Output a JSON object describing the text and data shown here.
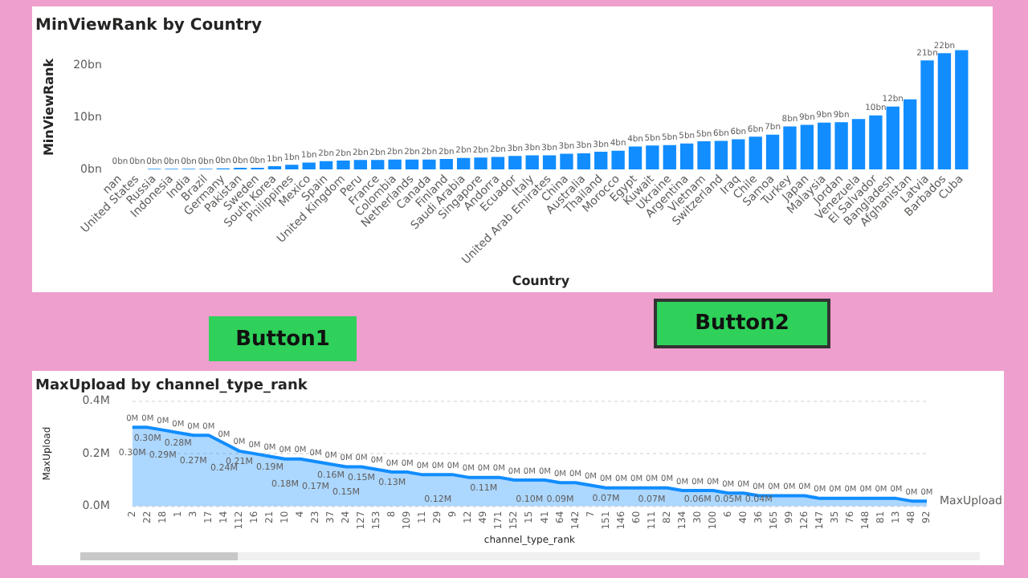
{
  "chart_data": [
    {
      "type": "bar",
      "title": "MinViewRank by Country",
      "xlabel": "Country",
      "ylabel": "MinViewRank",
      "categories": [
        "nan",
        "United States",
        "Russia",
        "Indonesia",
        "India",
        "Brazil",
        "Germany",
        "Pakistan",
        "Sweden",
        "South Korea",
        "Philippines",
        "Mexico",
        "Spain",
        "United Kingdom",
        "Peru",
        "France",
        "Colombia",
        "Netherlands",
        "Canada",
        "Finland",
        "Saudi Arabia",
        "Singapore",
        "Andorra",
        "Ecuador",
        "Italy",
        "United Arab Emirates",
        "China",
        "Australia",
        "Thailand",
        "Morocco",
        "Egypt",
        "Kuwait",
        "Ukraine",
        "Argentina",
        "Vietnam",
        "Switzerland",
        "Iraq",
        "Chile",
        "Samoa",
        "Turkey",
        "Japan",
        "Malaysia",
        "Jordan",
        "Venezuela",
        "El Salvador",
        "Bangladesh",
        "Afghanistan",
        "Latvia",
        "Barbados",
        "Cuba"
      ],
      "series": [
        {
          "color": "#118dff",
          "values": [
            0,
            0,
            0.1,
            0.1,
            0.1,
            0.1,
            0.2,
            0.3,
            0.3,
            0.6,
            0.9,
            1.3,
            1.6,
            1.7,
            1.8,
            1.8,
            1.9,
            1.9,
            1.9,
            2.0,
            2.2,
            2.3,
            2.4,
            2.6,
            2.7,
            2.7,
            3.0,
            3.1,
            3.4,
            3.6,
            4.4,
            4.6,
            4.7,
            5.0,
            5.4,
            5.5,
            5.8,
            6.3,
            6.7,
            8.3,
            8.6,
            9.0,
            9.1,
            9.7,
            10.4,
            12.1,
            13.5,
            21.0,
            22.4,
            23.0
          ],
          "value_labels": [
            "0bn",
            "0bn",
            "0bn",
            "0bn",
            "0bn",
            "0bn",
            "0bn",
            "0bn",
            "0bn",
            "1bn",
            "1bn",
            "1bn",
            "2bn",
            "2bn",
            "2bn",
            "2bn",
            "2bn",
            "2bn",
            "2bn",
            "2bn",
            "2bn",
            "2bn",
            "2bn",
            "3bn",
            "3bn",
            "3bn",
            "3bn",
            "3bn",
            "3bn",
            "4bn",
            "4bn",
            "5bn",
            "5bn",
            "5bn",
            "5bn",
            "6bn",
            "6bn",
            "6bn",
            "7bn",
            "8bn",
            "9bn",
            "9bn",
            "9bn",
            null,
            "10bn",
            "12bn",
            null,
            "21bn",
            "22bn",
            null
          ]
        }
      ],
      "ylim": [
        0,
        24
      ],
      "yticks": [
        {
          "value": 0,
          "label": "0bn"
        },
        {
          "value": 10,
          "label": "10bn"
        },
        {
          "value": 20,
          "label": "20bn"
        }
      ]
    },
    {
      "type": "other",
      "annotations": [
        "Button1",
        "Button2"
      ]
    },
    {
      "type": "area",
      "title": "MaxUpload by channel_type_rank",
      "xlabel": "channel_type_rank",
      "ylabel": "MaxUpload",
      "grid": "y",
      "categories": [
        "2",
        "22",
        "18",
        "1",
        "3",
        "17",
        "14",
        "112",
        "16",
        "21",
        "10",
        "4",
        "23",
        "37",
        "24",
        "127",
        "153",
        "8",
        "109",
        "11",
        "29",
        "9",
        "12",
        "49",
        "171",
        "152",
        "15",
        "41",
        "64",
        "142",
        "7",
        "151",
        "146",
        "60",
        "111",
        "82",
        "134",
        "30",
        "100",
        "6",
        "40",
        "36",
        "165",
        "99",
        "126",
        "147",
        "35",
        "76",
        "148",
        "81",
        "13",
        "48",
        "92"
      ],
      "series": [
        {
          "name": "MaxUpload",
          "color": "#118dff",
          "values": [
            0.3,
            0.3,
            0.29,
            0.28,
            0.27,
            0.27,
            0.24,
            0.21,
            0.2,
            0.19,
            0.18,
            0.18,
            0.17,
            0.16,
            0.15,
            0.15,
            0.14,
            0.13,
            0.13,
            0.12,
            0.12,
            0.12,
            0.11,
            0.11,
            0.11,
            0.1,
            0.1,
            0.1,
            0.09,
            0.09,
            0.08,
            0.07,
            0.07,
            0.07,
            0.07,
            0.07,
            0.06,
            0.06,
            0.06,
            0.05,
            0.05,
            0.04,
            0.04,
            0.04,
            0.04,
            0.03,
            0.03,
            0.03,
            0.03,
            0.03,
            0.03,
            0.02,
            0.02
          ],
          "value_labels": [
            "0.30M",
            "0.30M",
            "0.29M",
            "0.28M",
            "0.27M",
            null,
            "0.24M",
            "0.21M",
            null,
            "0.19M",
            "0.18M",
            null,
            "0.17M",
            "0.16M",
            "0.15M",
            "0.15M",
            null,
            "0.13M",
            null,
            null,
            "0.12M",
            null,
            null,
            "0.11M",
            null,
            null,
            "0.10M",
            null,
            "0.09M",
            null,
            null,
            "0.07M",
            null,
            null,
            "0.07M",
            null,
            null,
            "0.06M",
            null,
            "0.05M",
            null,
            "0.04M",
            null,
            null,
            null,
            null,
            null,
            null,
            null,
            null,
            null,
            null,
            null
          ]
        }
      ],
      "ylim": [
        0,
        0.4
      ],
      "yticks": [
        {
          "value": 0,
          "label": "0.0M"
        },
        {
          "value": 0.2,
          "label": "0.2M"
        },
        {
          "value": 0.4,
          "label": "0.4M"
        }
      ],
      "annotations": [
        {
          "text": "0M",
          "x": "2",
          "y": 0.3
        },
        {
          "text": "0M",
          "x": "22",
          "y": 0.3
        },
        {
          "text": "0M",
          "x": "18",
          "y": 0.29
        },
        {
          "text": "0M",
          "x": "1",
          "y": 0.28
        },
        {
          "text": "0M",
          "x": "3",
          "y": 0.27
        },
        {
          "text": "0M",
          "x": "17",
          "y": 0.27
        },
        {
          "text": "0M",
          "x": "14",
          "y": 0.24
        },
        {
          "text": "0M",
          "x": "112",
          "y": 0.21
        },
        {
          "text": "0M",
          "x": "16",
          "y": 0.2
        },
        {
          "text": "0M",
          "x": "21",
          "y": 0.19
        },
        {
          "text": "0M",
          "x": "10",
          "y": 0.18
        },
        {
          "text": "0M",
          "x": "4",
          "y": 0.18
        },
        {
          "text": "0M",
          "x": "23",
          "y": 0.17
        },
        {
          "text": "0M",
          "x": "37",
          "y": 0.16
        },
        {
          "text": "0M",
          "x": "24",
          "y": 0.15
        },
        {
          "text": "0M",
          "x": "127",
          "y": 0.15
        },
        {
          "text": "0M",
          "x": "153",
          "y": 0.14
        },
        {
          "text": "0M",
          "x": "8",
          "y": 0.13
        },
        {
          "text": "0M",
          "x": "109",
          "y": 0.13
        },
        {
          "text": "0M",
          "x": "11",
          "y": 0.12
        },
        {
          "text": "0M",
          "x": "29",
          "y": 0.12
        },
        {
          "text": "0M",
          "x": "9",
          "y": 0.12
        },
        {
          "text": "0M",
          "x": "12",
          "y": 0.11
        },
        {
          "text": "0M",
          "x": "49",
          "y": 0.11
        },
        {
          "text": "0M",
          "x": "171",
          "y": 0.11
        },
        {
          "text": "0M",
          "x": "152",
          "y": 0.1
        },
        {
          "text": "0M",
          "x": "15",
          "y": 0.1
        },
        {
          "text": "0M",
          "x": "41",
          "y": 0.1
        },
        {
          "text": "0M",
          "x": "64",
          "y": 0.09
        },
        {
          "text": "0M",
          "x": "142",
          "y": 0.09
        },
        {
          "text": "0M",
          "x": "7",
          "y": 0.08
        },
        {
          "text": "0M",
          "x": "151",
          "y": 0.07
        },
        {
          "text": "0M",
          "x": "146",
          "y": 0.07
        },
        {
          "text": "0M",
          "x": "60",
          "y": 0.07
        },
        {
          "text": "0M",
          "x": "111",
          "y": 0.07
        },
        {
          "text": "0M",
          "x": "82",
          "y": 0.07
        },
        {
          "text": "0M",
          "x": "134",
          "y": 0.06
        },
        {
          "text": "0M",
          "x": "30",
          "y": 0.06
        },
        {
          "text": "0M",
          "x": "100",
          "y": 0.06
        },
        {
          "text": "0M",
          "x": "6",
          "y": 0.05
        },
        {
          "text": "0M",
          "x": "40",
          "y": 0.05
        },
        {
          "text": "0M",
          "x": "36",
          "y": 0.04
        },
        {
          "text": "0M",
          "x": "165",
          "y": 0.04
        },
        {
          "text": "0M",
          "x": "99",
          "y": 0.04
        },
        {
          "text": "0M",
          "x": "126",
          "y": 0.04
        },
        {
          "text": "0M",
          "x": "147",
          "y": 0.03
        },
        {
          "text": "0M",
          "x": "35",
          "y": 0.03
        },
        {
          "text": "0M",
          "x": "76",
          "y": 0.03
        },
        {
          "text": "0M",
          "x": "148",
          "y": 0.03
        },
        {
          "text": "0M",
          "x": "81",
          "y": 0.03
        },
        {
          "text": "0M",
          "x": "13",
          "y": 0.03
        },
        {
          "text": "0M",
          "x": "48",
          "y": 0.02
        },
        {
          "text": "0M",
          "x": "92",
          "y": 0.02
        }
      ]
    }
  ]
}
